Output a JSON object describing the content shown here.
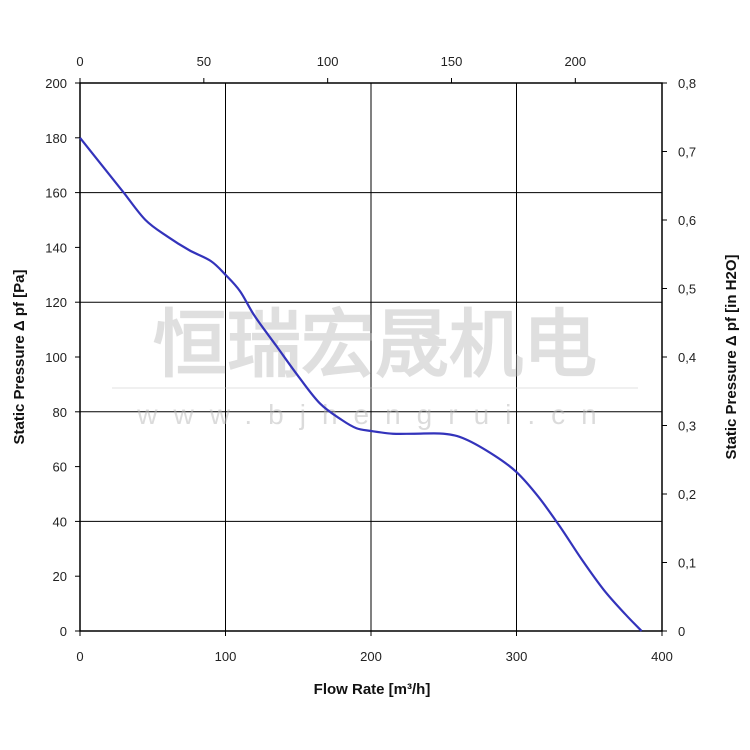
{
  "chart_data": {
    "type": "line",
    "xlabel": "Flow Rate [m³/h]",
    "ylabel": "Static Pressure Δ pf [Pa]",
    "ylabel_right": "Static Pressure Δ pf [in H2O]",
    "xlim": [
      0,
      400
    ],
    "ylim": [
      0,
      200
    ],
    "x_top_lim": [
      0,
      235
    ],
    "y_right_lim": [
      0,
      0.8
    ],
    "x_ticks": [
      "0",
      "100",
      "200",
      "300",
      "400"
    ],
    "y_ticks": [
      "0",
      "20",
      "40",
      "60",
      "80",
      "100",
      "120",
      "140",
      "160",
      "180",
      "200"
    ],
    "x_top_ticks": [
      "0",
      "50",
      "100",
      "150",
      "200"
    ],
    "y_right_ticks": [
      "0",
      "0,1",
      "0,2",
      "0,3",
      "0,4",
      "0,5",
      "0,6",
      "0,7",
      "0,8"
    ],
    "grid": true,
    "line_color": "#3333bb",
    "series": [
      {
        "x": [
          0,
          15,
          30,
          45,
          60,
          75,
          90,
          100,
          110,
          120,
          135,
          150,
          165,
          180,
          190,
          200,
          215,
          230,
          250,
          265,
          285,
          300,
          315,
          330,
          345,
          360,
          375,
          386
        ],
        "values": [
          180,
          170,
          160,
          150,
          144,
          139,
          135,
          130,
          124,
          115,
          104,
          93,
          83,
          77,
          74,
          73,
          72,
          72,
          72,
          70,
          64,
          58,
          49,
          38,
          26,
          15,
          6,
          0
        ]
      }
    ],
    "watermark": {
      "chinese": "恒瑞宏晟机电",
      "url": "www.bjhengrui.cn"
    }
  }
}
